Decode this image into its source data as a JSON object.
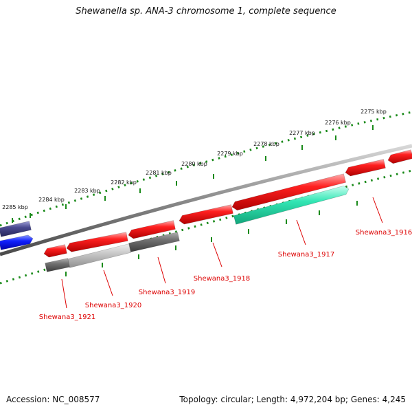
{
  "title": "Shewanella sp. ANA-3 chromosome 1, complete sequence",
  "footer": {
    "accession": "Accession: NC_008577",
    "summary": "Topology: circular; Length: 4,972,204 bp; Genes: 4,245"
  },
  "colors": {
    "backbone": "#8c8c8c",
    "tick": "#1a8a1a",
    "gene_red": "#ff1a1a",
    "gene_teal": "#33e0b0",
    "gene_gray": "#6e6e6e",
    "gene_lightgray": "#c4c4c4",
    "gene_navy": "#4a4a90",
    "gene_blue": "#0a1aff",
    "label": "#dd0000"
  },
  "scale_labels": [
    "2275 kbp",
    "2276 kbp",
    "2277 kbp",
    "2278 kbp",
    "2279 kbp",
    "2280 kbp",
    "2281 kbp",
    "2282 kbp",
    "2283 kbp",
    "2284 kbp",
    "2285 kbp"
  ],
  "gene_labels": [
    "Shewana3_1916",
    "Shewana3_1917",
    "Shewana3_1918",
    "Shewana3_1919",
    "Shewana3_1920",
    "Shewana3_1921"
  ]
}
